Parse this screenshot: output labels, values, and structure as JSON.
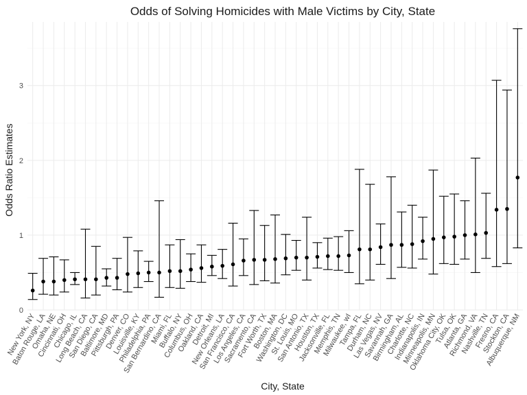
{
  "chart_data": {
    "type": "scatter",
    "title": "Odds of Solving Homicides with Male Victims by City, State",
    "xlabel": "City, State",
    "ylabel": "Odds Ratio Estimates",
    "ylim": [
      0,
      3.85
    ],
    "yticks": [
      0,
      1,
      2,
      3
    ],
    "grid": true,
    "legend": "none",
    "colors": {
      "point": "#000000",
      "errorbar": "#000000",
      "grid": "#ebebeb"
    },
    "categories": [
      "New York, NY",
      "Baton Rouge, LA",
      "Omaha, NE",
      "Cincinnati, OH",
      "Chicago, IL",
      "Long Beach, CA",
      "San Diego, CA",
      "Baltimore, MD",
      "Pittsburgh, PA",
      "Denver, CO",
      "Louisville, KY",
      "Philadelphia, PA",
      "San Bernardino, CA",
      "Miami, FL",
      "Buffalo, NY",
      "Columbus, OH",
      "Oakland, CA",
      "Detroit, MI",
      "New Orleans, LA",
      "San Francisco, CA",
      "Los Angeles, CA",
      "Sacramento, CA",
      "Fort Worth, TX",
      "Boston, MA",
      "Washington, DC",
      "St. Louis, MO",
      "San Antonio, TX",
      "Houston, TX",
      "Jacksonville, FL",
      "Memphis, TN",
      "Milwaukee, wI",
      "Tampa, FL",
      "Durham, NC",
      "Las Vegas, NV",
      "Savannah, GA",
      "Birmingham, AL",
      "Charlotte, NC",
      "Indianapolis, IN",
      "Minneapolis, MN",
      "Oklahoma City, OK",
      "Tulsa, OK",
      "Atlanta, GA",
      "Richmond, VA",
      "Nashville, TN",
      "Fresno, CA",
      "Stockton, CA",
      "Albuquerque, NM"
    ],
    "estimates": [
      0.26,
      0.38,
      0.38,
      0.4,
      0.41,
      0.41,
      0.41,
      0.43,
      0.43,
      0.48,
      0.49,
      0.5,
      0.5,
      0.52,
      0.52,
      0.54,
      0.56,
      0.58,
      0.59,
      0.61,
      0.66,
      0.67,
      0.67,
      0.68,
      0.69,
      0.7,
      0.7,
      0.71,
      0.72,
      0.72,
      0.73,
      0.81,
      0.81,
      0.84,
      0.87,
      0.87,
      0.88,
      0.92,
      0.95,
      0.97,
      0.98,
      1.0,
      1.01,
      1.03,
      1.34,
      1.35,
      1.77
    ],
    "ci_lower": [
      0.14,
      0.21,
      0.2,
      0.24,
      0.34,
      0.16,
      0.2,
      0.32,
      0.27,
      0.24,
      0.3,
      0.38,
      0.17,
      0.3,
      0.29,
      0.38,
      0.37,
      0.46,
      0.42,
      0.32,
      0.46,
      0.34,
      0.39,
      0.36,
      0.47,
      0.53,
      0.4,
      0.56,
      0.54,
      0.53,
      0.5,
      0.35,
      0.4,
      0.61,
      0.42,
      0.57,
      0.56,
      0.68,
      0.48,
      0.62,
      0.61,
      0.68,
      0.5,
      0.69,
      0.58,
      0.62,
      0.83
    ],
    "ci_upper": [
      0.49,
      0.69,
      0.71,
      0.67,
      0.5,
      1.08,
      0.85,
      0.55,
      0.69,
      0.97,
      0.79,
      0.65,
      1.46,
      0.87,
      0.94,
      0.75,
      0.87,
      0.73,
      0.81,
      1.16,
      0.95,
      1.33,
      1.13,
      1.27,
      1.01,
      0.93,
      1.24,
      0.9,
      0.96,
      0.98,
      1.06,
      1.88,
      1.68,
      1.15,
      1.78,
      1.31,
      1.4,
      1.24,
      1.87,
      1.52,
      1.55,
      1.46,
      2.03,
      1.56,
      3.07,
      2.94,
      3.76
    ]
  }
}
